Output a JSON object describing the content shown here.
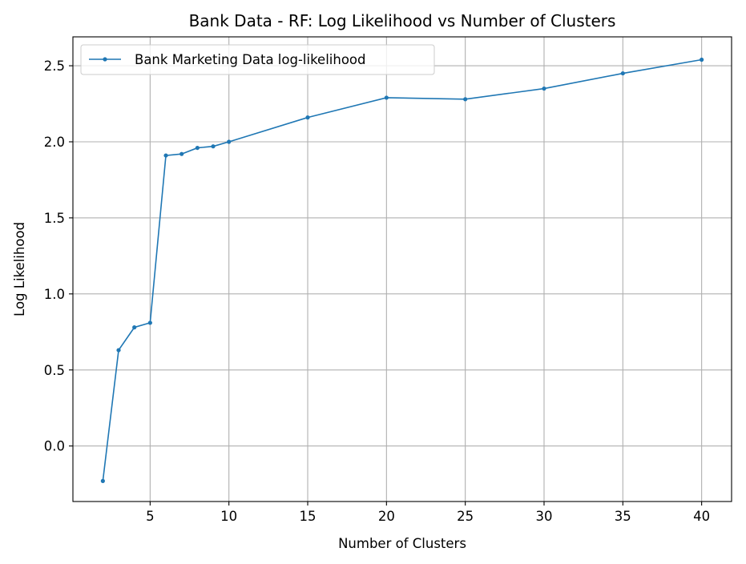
{
  "chart_data": {
    "type": "line",
    "title": "Bank Data - RF: Log Likelihood vs Number of Clusters",
    "xlabel": "Number of Clusters",
    "ylabel": "Log Likelihood",
    "xlim": [
      0.1,
      41.9
    ],
    "ylim": [
      -0.365,
      2.69
    ],
    "x_ticks": [
      5,
      10,
      15,
      20,
      25,
      30,
      35,
      40
    ],
    "y_ticks": [
      0.0,
      0.5,
      1.0,
      1.5,
      2.0,
      2.5
    ],
    "x_tick_labels": [
      "5",
      "10",
      "15",
      "20",
      "25",
      "30",
      "35",
      "40"
    ],
    "y_tick_labels": [
      "0.0",
      "0.5",
      "1.0",
      "1.5",
      "2.0",
      "2.5"
    ],
    "grid": true,
    "legend_position": "top-left",
    "series": [
      {
        "name": "Bank Marketing Data log-likelihood",
        "color": "#1f77b4",
        "marker": "circle",
        "x": [
          2,
          3,
          4,
          5,
          6,
          7,
          8,
          9,
          10,
          15,
          20,
          25,
          30,
          35,
          40
        ],
        "y": [
          -0.23,
          0.63,
          0.78,
          0.81,
          1.91,
          1.92,
          1.96,
          1.97,
          2.0,
          2.16,
          2.29,
          2.28,
          2.35,
          2.45,
          2.54
        ]
      }
    ]
  }
}
